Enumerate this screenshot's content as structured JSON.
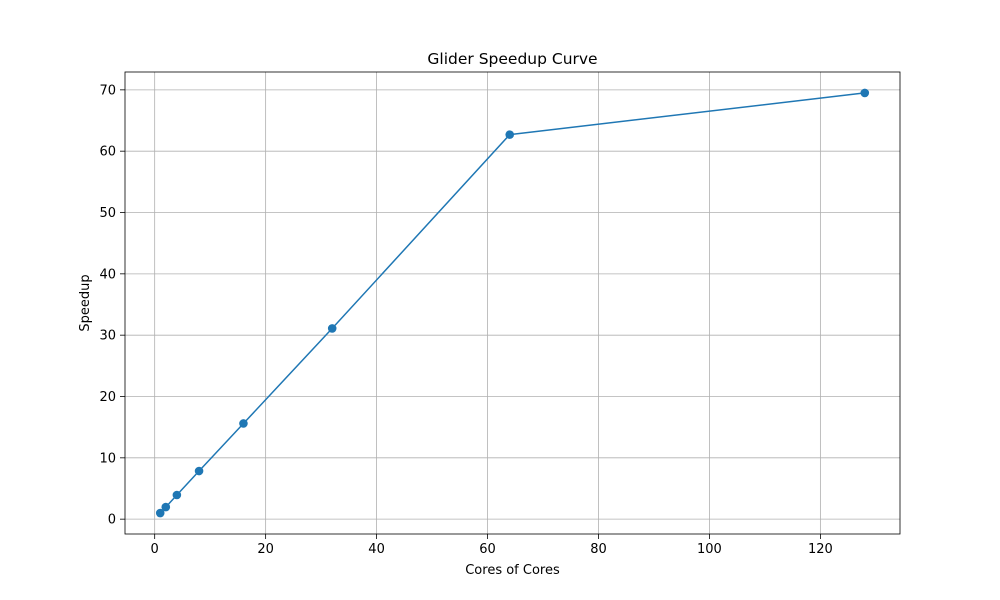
{
  "chart_data": {
    "type": "line",
    "title": "Glider Speedup Curve",
    "xlabel": "Cores of Cores",
    "ylabel": "Speedup",
    "x": [
      1,
      2,
      4,
      8,
      16,
      32,
      64,
      128
    ],
    "series": [
      {
        "values": [
          1.0,
          1.97,
          3.94,
          7.85,
          15.6,
          31.1,
          62.7,
          69.5
        ],
        "color": "#1f77b4",
        "marker": "circle"
      }
    ],
    "xlim": [
      -5.35,
      134.35
    ],
    "ylim": [
      -2.42,
      72.91
    ],
    "xticks": [
      0,
      20,
      40,
      60,
      80,
      100,
      120
    ],
    "xtick_labels": [
      "0",
      "20",
      "40",
      "60",
      "80",
      "100",
      "120"
    ],
    "yticks": [
      0,
      10,
      20,
      30,
      40,
      50,
      60,
      70
    ],
    "ytick_labels": [
      "0",
      "10",
      "20",
      "30",
      "40",
      "50",
      "60",
      "70"
    ],
    "grid": true,
    "legend": "none"
  }
}
